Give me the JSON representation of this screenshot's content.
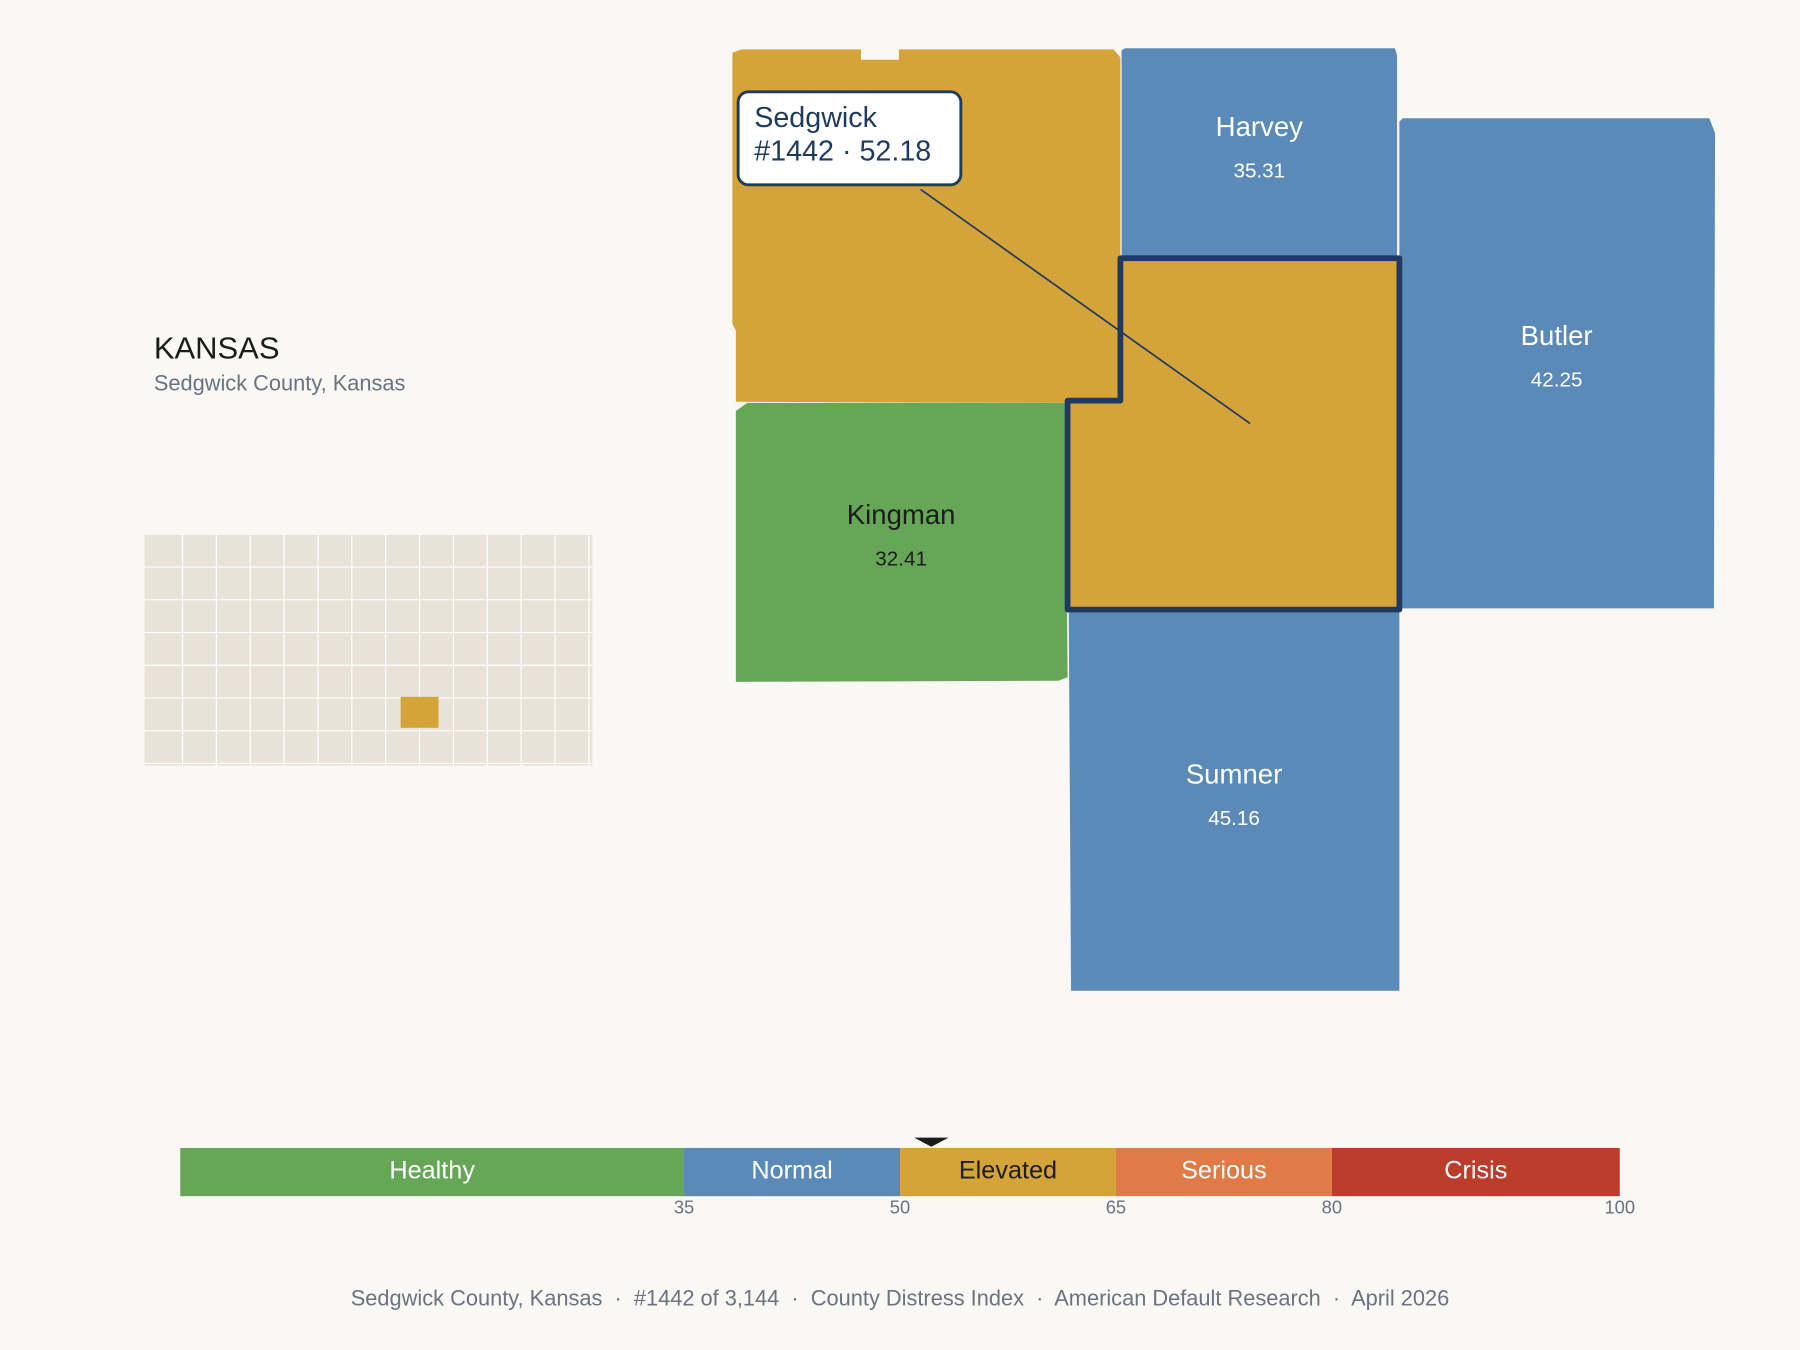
{
  "title": "KANSAS",
  "subtitle": "Sedgwick County, Kansas",
  "focus": {
    "name": "Sedgwick",
    "value": 52.18,
    "callout": "#1442 · 52.18",
    "color": "#D4A43A",
    "outline": "#1F3A5F"
  },
  "counties": [
    {
      "name": "Harvey",
      "value": 35.31,
      "color": "#5B8AB9",
      "label_color": "#ffffff"
    },
    {
      "name": "Butler",
      "value": 42.25,
      "color": "#5B8AB9",
      "label_color": "#ffffff"
    },
    {
      "name": "Kingman",
      "value": 32.41,
      "color": "#66A757",
      "label_color": "#1c1c1c"
    },
    {
      "name": "Sumner",
      "value": 45.16,
      "color": "#5B8AB9",
      "label_color": "#ffffff"
    }
  ],
  "scale": {
    "min": 0,
    "max": 100,
    "ticks": [
      35,
      50,
      65,
      80,
      100
    ],
    "bands": [
      {
        "label": "Healthy",
        "color": "#66A757",
        "text_color": "#ffffff"
      },
      {
        "label": "Normal",
        "color": "#5B8AB9",
        "text_color": "#ffffff"
      },
      {
        "label": "Elevated",
        "color": "#D4A43A",
        "text_color": "#1c1c1c"
      },
      {
        "label": "Serious",
        "color": "#E07B47",
        "text_color": "#ffffff"
      },
      {
        "label": "Crisis",
        "color": "#BC3C2C",
        "text_color": "#ffffff"
      }
    ]
  },
  "footer": "Sedgwick County, Kansas  ·  #1442 of 3,144  ·  County Distress Index  ·  American Default Research  ·  April 2026"
}
